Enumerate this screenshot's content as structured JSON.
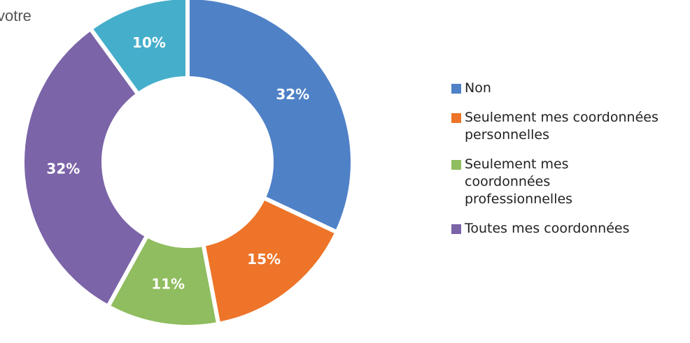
{
  "chart_data": {
    "type": "donut",
    "title": "votre",
    "categories": [
      "Non",
      "Seulement mes coordonnées personnelles",
      "Seulement mes coordonnées professionnelles",
      "Toutes mes coordonnées",
      null
    ],
    "values": [
      32,
      15,
      11,
      32,
      10
    ],
    "value_labels": [
      "32%",
      "15%",
      "11%",
      "32%",
      "10%"
    ],
    "colors": [
      "#4f81c7",
      "#ed7428",
      "#8fbd5f",
      "#7b64a8",
      "#45aecb"
    ],
    "legend": "right"
  }
}
